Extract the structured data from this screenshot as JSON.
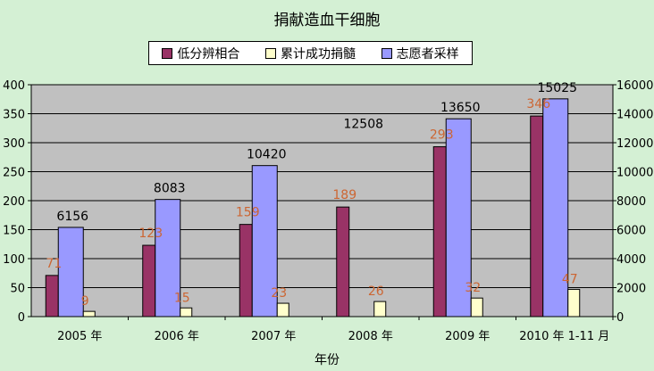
{
  "title": "捐献造血干细胞",
  "colors": {
    "background": "#d4f0d4",
    "plot_area": "#c0c0c0",
    "low_match": "#993366",
    "donation": "#ffffcc",
    "volunteer": "#9999ff",
    "label_orange": "#cc6633"
  },
  "chart_data": {
    "type": "bar",
    "title": "捐献造血干细胞",
    "xlabel": "年份",
    "categories": [
      "2005 年",
      "2006 年",
      "2007 年",
      "2008 年",
      "2009 年",
      "2010 年 1-11 月"
    ],
    "left_axis": {
      "ylim": [
        0,
        400
      ],
      "ticks": [
        "0",
        "50",
        "100",
        "150",
        "200",
        "250",
        "300",
        "350",
        "400"
      ]
    },
    "right_axis": {
      "ylim": [
        0,
        16000
      ],
      "ticks": [
        "0",
        "2000",
        "4000",
        "6000",
        "8000",
        "10000",
        "12000",
        "14000",
        "16000"
      ]
    },
    "grid": true,
    "legend_position": "top-center",
    "series": [
      {
        "name": "低分辨相合",
        "axis": "left",
        "color": "#993366",
        "values": [
          71,
          123,
          159,
          189,
          293,
          346
        ]
      },
      {
        "name": "累计成功捐髓",
        "axis": "left",
        "color": "#ffffcc",
        "values": [
          9,
          15,
          23,
          26,
          32,
          47
        ]
      },
      {
        "name": "志愿者采样",
        "axis": "right",
        "color": "#9999ff",
        "values": [
          6156,
          8083,
          10420,
          12508,
          13650,
          15025
        ]
      }
    ]
  }
}
